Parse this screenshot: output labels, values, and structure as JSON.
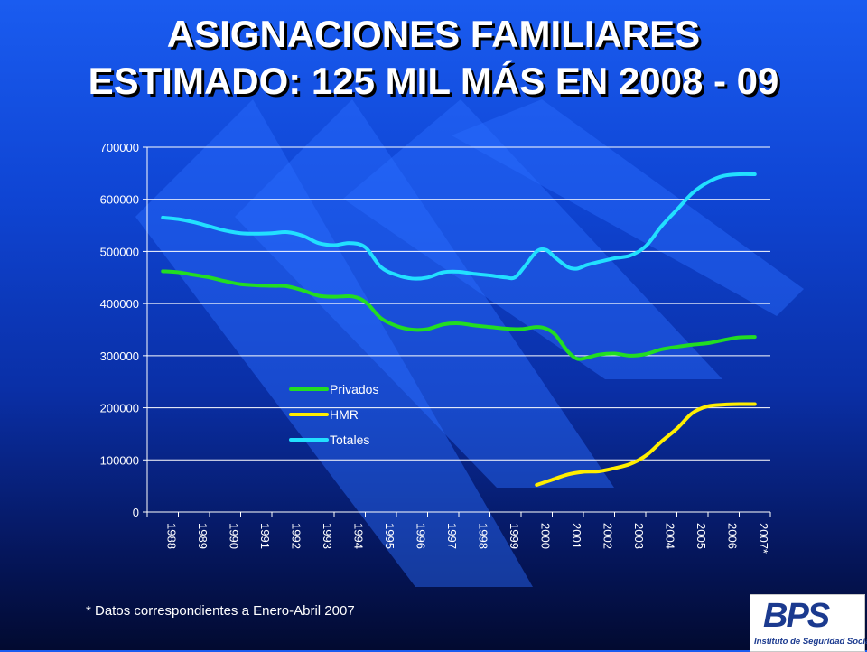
{
  "slide": {
    "title_line1": "ASIGNACIONES FAMILIARES",
    "title_line2": "ESTIMADO: 125 MIL MÁS EN 2008 - 09",
    "footnote": "* Datos correspondientes a Enero-Abril 2007",
    "logo_text": "BPS",
    "logo_subtitle": "Instituto de Seguridad Social"
  },
  "colors": {
    "Privados": "#22dd22",
    "HMR": "#ffee00",
    "Totales": "#22e0ff",
    "axis": "#ffffff",
    "stripe": "#2a6cff"
  },
  "chart_data": {
    "type": "line",
    "title": "",
    "xlabel": "",
    "ylabel": "",
    "ylim": [
      0,
      700000
    ],
    "yticks": [
      0,
      100000,
      200000,
      300000,
      400000,
      500000,
      600000,
      700000
    ],
    "categories": [
      "1988",
      "1989",
      "1990",
      "1991",
      "1992",
      "1993",
      "1994",
      "1995",
      "1996",
      "1997",
      "1998",
      "1999",
      "2000",
      "2001",
      "2002",
      "2003",
      "2004",
      "2005",
      "2006",
      "2007*"
    ],
    "legend_position": "center-left",
    "grid": "horizontal",
    "series": [
      {
        "name": "Privados",
        "x": [
          1988,
          1988.5,
          1989,
          1989.5,
          1990,
          1990.5,
          1991,
          1991.5,
          1992,
          1992.5,
          1993,
          1993.5,
          1994,
          1994.3,
          1994.6,
          1995,
          1995.5,
          1996,
          1996.5,
          1997,
          1997.5,
          1998,
          1998.5,
          1999,
          1999.5,
          2000,
          2000.3,
          2000.6,
          2001,
          2001.3,
          2001.6,
          2002,
          2002.5,
          2003,
          2003.5,
          2004,
          2004.5,
          2005,
          2005.5,
          2006,
          2006.5,
          2007
        ],
        "values": [
          462000,
          460000,
          455000,
          450000,
          443000,
          437000,
          435000,
          434000,
          433000,
          425000,
          415000,
          413000,
          414000,
          410000,
          398000,
          372000,
          357000,
          350000,
          351000,
          360000,
          362000,
          358000,
          355000,
          352000,
          351000,
          355000,
          352000,
          340000,
          308000,
          294000,
          296000,
          302000,
          304000,
          300000,
          303000,
          312000,
          317000,
          321000,
          324000,
          330000,
          335000,
          336000
        ]
      },
      {
        "name": "HMR",
        "x": [
          2000,
          2000.5,
          2001,
          2001.5,
          2002,
          2002.5,
          2003,
          2003.5,
          2004,
          2004.5,
          2005,
          2005.5,
          2006,
          2006.5,
          2007
        ],
        "values": [
          52000,
          62000,
          72000,
          77000,
          78000,
          84000,
          92000,
          108000,
          135000,
          160000,
          190000,
          203000,
          206000,
          207000,
          207000
        ]
      },
      {
        "name": "Totales",
        "x": [
          1988,
          1988.5,
          1989,
          1989.5,
          1990,
          1990.5,
          1991,
          1991.5,
          1992,
          1992.5,
          1993,
          1993.5,
          1994,
          1994.5,
          1995,
          1995.5,
          1996,
          1996.5,
          1997,
          1997.5,
          1998,
          1998.5,
          1999,
          1999.3,
          1999.6,
          2000,
          2000.3,
          2000.6,
          2001,
          2001.3,
          2001.6,
          2002,
          2002.5,
          2003,
          2003.5,
          2004,
          2004.5,
          2005,
          2005.5,
          2006,
          2006.5,
          2007
        ],
        "values": [
          565000,
          562000,
          556000,
          548000,
          540000,
          535000,
          534000,
          535000,
          537000,
          530000,
          516000,
          512000,
          516000,
          508000,
          470000,
          455000,
          448000,
          450000,
          460000,
          461000,
          457000,
          454000,
          450000,
          450000,
          470000,
          500000,
          503000,
          488000,
          470000,
          467000,
          474000,
          480000,
          487000,
          492000,
          510000,
          548000,
          580000,
          612000,
          633000,
          645000,
          648000,
          648000
        ]
      }
    ]
  }
}
